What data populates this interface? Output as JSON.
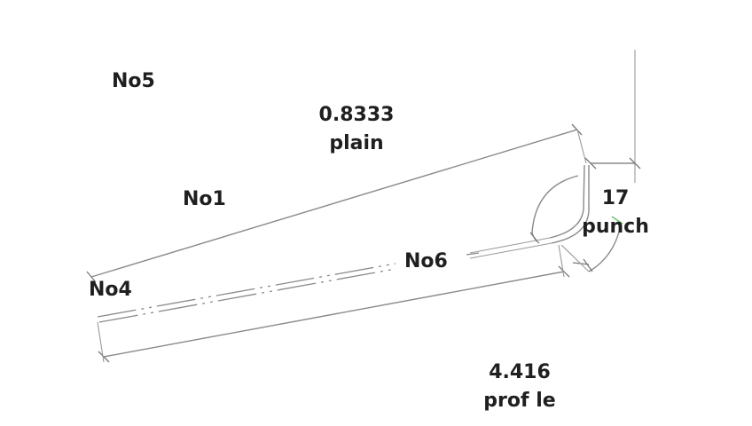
{
  "labels": {
    "no5": "No5",
    "no1": "No1",
    "no4": "No4",
    "no6": "No6"
  },
  "dimensions": {
    "top": {
      "value": "0.8333",
      "note": "plain"
    },
    "radius": {
      "value": "17",
      "note": "punch"
    },
    "bottom": {
      "value": "4.416",
      "note": "prof le"
    }
  },
  "colors": {
    "line": "#8a8a8a",
    "text": "#1f1f1f",
    "accent": "#6fc26f"
  }
}
